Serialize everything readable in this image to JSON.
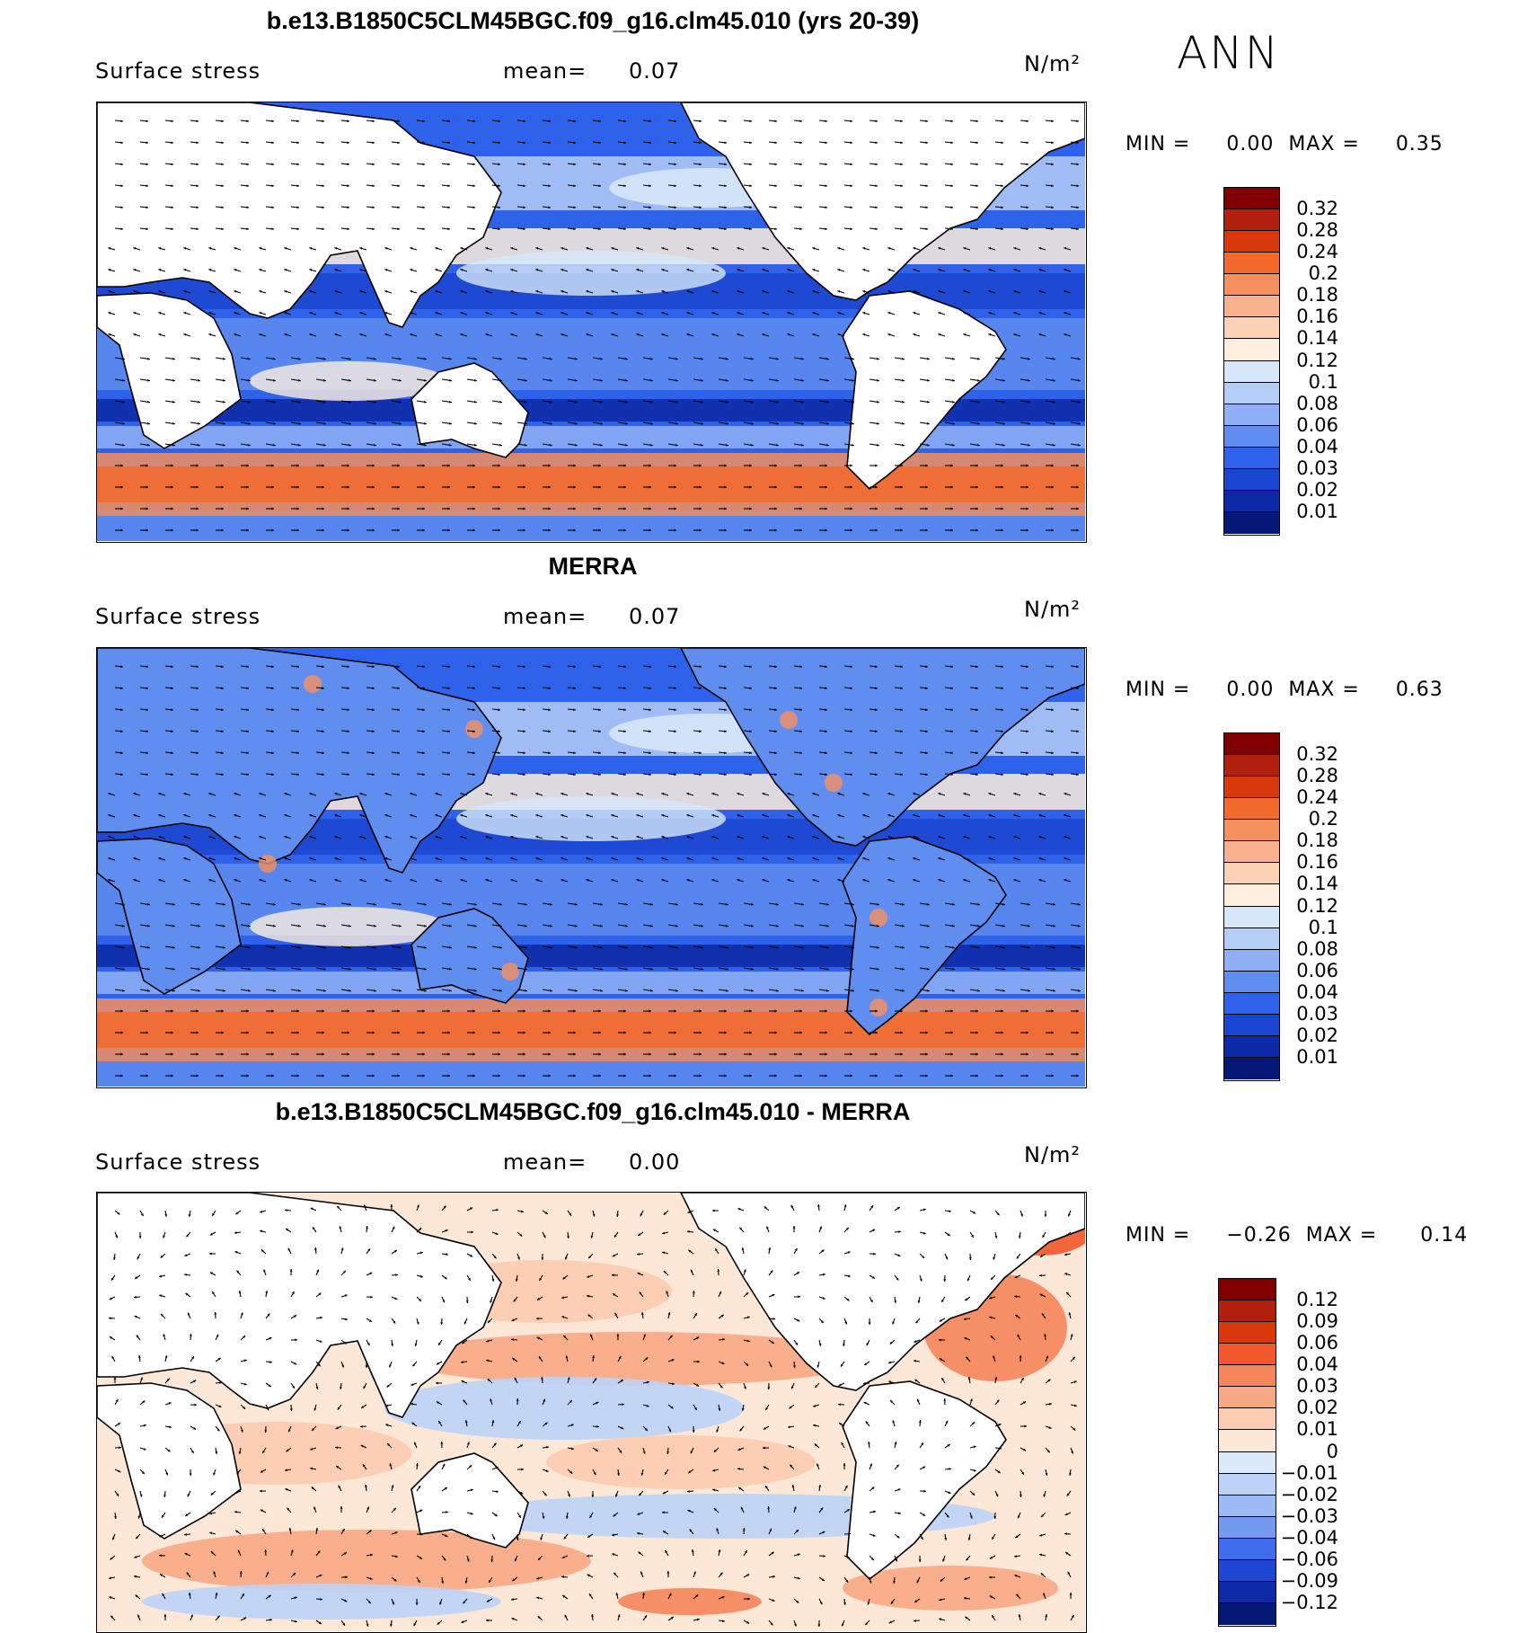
{
  "season": "ANN",
  "panels": [
    {
      "id": "model",
      "title": "b.e13.B1850C5CLM45BGC.f09_g16.clm45.010 (yrs 20-39)",
      "variable": "Surface stress",
      "mean_label": "mean=",
      "mean_value": "0.07",
      "units": "N/m²",
      "min_label": "MIN =",
      "min_value": "0.00",
      "max_label": "MAX =",
      "max_value": "0.35",
      "colorbar": {
        "labels": [
          "0.32",
          "0.28",
          "0.24",
          "0.2",
          "0.18",
          "0.16",
          "0.14",
          "0.12",
          "0.1",
          "0.08",
          "0.06",
          "0.04",
          "0.03",
          "0.02",
          "0.01"
        ],
        "colors": [
          "#800000",
          "#b0200c",
          "#d9380b",
          "#f26a2c",
          "#f6905f",
          "#f9b08d",
          "#fcd2b5",
          "#fdeedd",
          "#d6e7fa",
          "#b3cdf7",
          "#8fb0f4",
          "#5f8df0",
          "#2f62ea",
          "#1a45cf",
          "#0c2aa6",
          "#041875"
        ]
      }
    },
    {
      "id": "obs",
      "title": "MERRA",
      "variable": "Surface stress",
      "mean_label": "mean=",
      "mean_value": "0.07",
      "units": "N/m²",
      "min_label": "MIN =",
      "min_value": "0.00",
      "max_label": "MAX =",
      "max_value": "0.63",
      "colorbar": {
        "labels": [
          "0.32",
          "0.28",
          "0.24",
          "0.2",
          "0.18",
          "0.16",
          "0.14",
          "0.12",
          "0.1",
          "0.08",
          "0.06",
          "0.04",
          "0.03",
          "0.02",
          "0.01"
        ],
        "colors": [
          "#800000",
          "#b0200c",
          "#d9380b",
          "#f26a2c",
          "#f6905f",
          "#f9b08d",
          "#fcd2b5",
          "#fdeedd",
          "#d6e7fa",
          "#b3cdf7",
          "#8fb0f4",
          "#5f8df0",
          "#2f62ea",
          "#1a45cf",
          "#0c2aa6",
          "#041875"
        ]
      }
    },
    {
      "id": "diff",
      "title": "b.e13.B1850C5CLM45BGC.f09_g16.clm45.010 - MERRA",
      "variable": "Surface stress",
      "mean_label": "mean=",
      "mean_value": "0.00",
      "units": "N/m²",
      "min_label": "MIN =",
      "min_value": "−0.26",
      "max_label": "MAX =",
      "max_value": "0.14",
      "colorbar": {
        "labels": [
          "0.12",
          "0.09",
          "0.06",
          "0.04",
          "0.03",
          "0.02",
          "0.01",
          "0",
          "−0.01",
          "−0.02",
          "−0.03",
          "−0.04",
          "−0.06",
          "−0.09",
          "−0.12"
        ],
        "colors": [
          "#800000",
          "#b0200c",
          "#d9380b",
          "#f2582a",
          "#f6855a",
          "#f9a884",
          "#fccbb0",
          "#fde8d8",
          "#dbe9fb",
          "#bcd3f8",
          "#9cbaf5",
          "#739bf1",
          "#3f6ded",
          "#1e48d4",
          "#0d2ba8",
          "#041875"
        ]
      }
    }
  ]
}
